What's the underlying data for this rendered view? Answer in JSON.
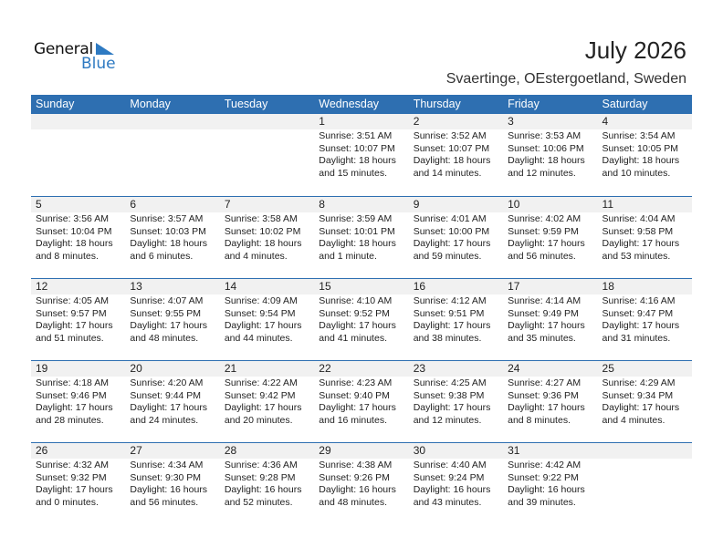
{
  "logo": {
    "text_general": "General",
    "text_blue": "Blue"
  },
  "title": "July 2026",
  "location": "Svaertinge, OEstergoetland, Sweden",
  "colors": {
    "header": "#2e6fb1",
    "day_band": "#f1f1f1",
    "brand": "#2e7ac2"
  },
  "weekdays": [
    "Sunday",
    "Monday",
    "Tuesday",
    "Wednesday",
    "Thursday",
    "Friday",
    "Saturday"
  ],
  "weeks": [
    [
      null,
      null,
      null,
      {
        "day": "1",
        "sunrise": "Sunrise: 3:51 AM",
        "sunset": "Sunset: 10:07 PM",
        "daylight1": "Daylight: 18 hours",
        "daylight2": "and 15 minutes."
      },
      {
        "day": "2",
        "sunrise": "Sunrise: 3:52 AM",
        "sunset": "Sunset: 10:07 PM",
        "daylight1": "Daylight: 18 hours",
        "daylight2": "and 14 minutes."
      },
      {
        "day": "3",
        "sunrise": "Sunrise: 3:53 AM",
        "sunset": "Sunset: 10:06 PM",
        "daylight1": "Daylight: 18 hours",
        "daylight2": "and 12 minutes."
      },
      {
        "day": "4",
        "sunrise": "Sunrise: 3:54 AM",
        "sunset": "Sunset: 10:05 PM",
        "daylight1": "Daylight: 18 hours",
        "daylight2": "and 10 minutes."
      }
    ],
    [
      {
        "day": "5",
        "sunrise": "Sunrise: 3:56 AM",
        "sunset": "Sunset: 10:04 PM",
        "daylight1": "Daylight: 18 hours",
        "daylight2": "and 8 minutes."
      },
      {
        "day": "6",
        "sunrise": "Sunrise: 3:57 AM",
        "sunset": "Sunset: 10:03 PM",
        "daylight1": "Daylight: 18 hours",
        "daylight2": "and 6 minutes."
      },
      {
        "day": "7",
        "sunrise": "Sunrise: 3:58 AM",
        "sunset": "Sunset: 10:02 PM",
        "daylight1": "Daylight: 18 hours",
        "daylight2": "and 4 minutes."
      },
      {
        "day": "8",
        "sunrise": "Sunrise: 3:59 AM",
        "sunset": "Sunset: 10:01 PM",
        "daylight1": "Daylight: 18 hours",
        "daylight2": "and 1 minute."
      },
      {
        "day": "9",
        "sunrise": "Sunrise: 4:01 AM",
        "sunset": "Sunset: 10:00 PM",
        "daylight1": "Daylight: 17 hours",
        "daylight2": "and 59 minutes."
      },
      {
        "day": "10",
        "sunrise": "Sunrise: 4:02 AM",
        "sunset": "Sunset: 9:59 PM",
        "daylight1": "Daylight: 17 hours",
        "daylight2": "and 56 minutes."
      },
      {
        "day": "11",
        "sunrise": "Sunrise: 4:04 AM",
        "sunset": "Sunset: 9:58 PM",
        "daylight1": "Daylight: 17 hours",
        "daylight2": "and 53 minutes."
      }
    ],
    [
      {
        "day": "12",
        "sunrise": "Sunrise: 4:05 AM",
        "sunset": "Sunset: 9:57 PM",
        "daylight1": "Daylight: 17 hours",
        "daylight2": "and 51 minutes."
      },
      {
        "day": "13",
        "sunrise": "Sunrise: 4:07 AM",
        "sunset": "Sunset: 9:55 PM",
        "daylight1": "Daylight: 17 hours",
        "daylight2": "and 48 minutes."
      },
      {
        "day": "14",
        "sunrise": "Sunrise: 4:09 AM",
        "sunset": "Sunset: 9:54 PM",
        "daylight1": "Daylight: 17 hours",
        "daylight2": "and 44 minutes."
      },
      {
        "day": "15",
        "sunrise": "Sunrise: 4:10 AM",
        "sunset": "Sunset: 9:52 PM",
        "daylight1": "Daylight: 17 hours",
        "daylight2": "and 41 minutes."
      },
      {
        "day": "16",
        "sunrise": "Sunrise: 4:12 AM",
        "sunset": "Sunset: 9:51 PM",
        "daylight1": "Daylight: 17 hours",
        "daylight2": "and 38 minutes."
      },
      {
        "day": "17",
        "sunrise": "Sunrise: 4:14 AM",
        "sunset": "Sunset: 9:49 PM",
        "daylight1": "Daylight: 17 hours",
        "daylight2": "and 35 minutes."
      },
      {
        "day": "18",
        "sunrise": "Sunrise: 4:16 AM",
        "sunset": "Sunset: 9:47 PM",
        "daylight1": "Daylight: 17 hours",
        "daylight2": "and 31 minutes."
      }
    ],
    [
      {
        "day": "19",
        "sunrise": "Sunrise: 4:18 AM",
        "sunset": "Sunset: 9:46 PM",
        "daylight1": "Daylight: 17 hours",
        "daylight2": "and 28 minutes."
      },
      {
        "day": "20",
        "sunrise": "Sunrise: 4:20 AM",
        "sunset": "Sunset: 9:44 PM",
        "daylight1": "Daylight: 17 hours",
        "daylight2": "and 24 minutes."
      },
      {
        "day": "21",
        "sunrise": "Sunrise: 4:22 AM",
        "sunset": "Sunset: 9:42 PM",
        "daylight1": "Daylight: 17 hours",
        "daylight2": "and 20 minutes."
      },
      {
        "day": "22",
        "sunrise": "Sunrise: 4:23 AM",
        "sunset": "Sunset: 9:40 PM",
        "daylight1": "Daylight: 17 hours",
        "daylight2": "and 16 minutes."
      },
      {
        "day": "23",
        "sunrise": "Sunrise: 4:25 AM",
        "sunset": "Sunset: 9:38 PM",
        "daylight1": "Daylight: 17 hours",
        "daylight2": "and 12 minutes."
      },
      {
        "day": "24",
        "sunrise": "Sunrise: 4:27 AM",
        "sunset": "Sunset: 9:36 PM",
        "daylight1": "Daylight: 17 hours",
        "daylight2": "and 8 minutes."
      },
      {
        "day": "25",
        "sunrise": "Sunrise: 4:29 AM",
        "sunset": "Sunset: 9:34 PM",
        "daylight1": "Daylight: 17 hours",
        "daylight2": "and 4 minutes."
      }
    ],
    [
      {
        "day": "26",
        "sunrise": "Sunrise: 4:32 AM",
        "sunset": "Sunset: 9:32 PM",
        "daylight1": "Daylight: 17 hours",
        "daylight2": "and 0 minutes."
      },
      {
        "day": "27",
        "sunrise": "Sunrise: 4:34 AM",
        "sunset": "Sunset: 9:30 PM",
        "daylight1": "Daylight: 16 hours",
        "daylight2": "and 56 minutes."
      },
      {
        "day": "28",
        "sunrise": "Sunrise: 4:36 AM",
        "sunset": "Sunset: 9:28 PM",
        "daylight1": "Daylight: 16 hours",
        "daylight2": "and 52 minutes."
      },
      {
        "day": "29",
        "sunrise": "Sunrise: 4:38 AM",
        "sunset": "Sunset: 9:26 PM",
        "daylight1": "Daylight: 16 hours",
        "daylight2": "and 48 minutes."
      },
      {
        "day": "30",
        "sunrise": "Sunrise: 4:40 AM",
        "sunset": "Sunset: 9:24 PM",
        "daylight1": "Daylight: 16 hours",
        "daylight2": "and 43 minutes."
      },
      {
        "day": "31",
        "sunrise": "Sunrise: 4:42 AM",
        "sunset": "Sunset: 9:22 PM",
        "daylight1": "Daylight: 16 hours",
        "daylight2": "and 39 minutes."
      },
      null
    ]
  ]
}
